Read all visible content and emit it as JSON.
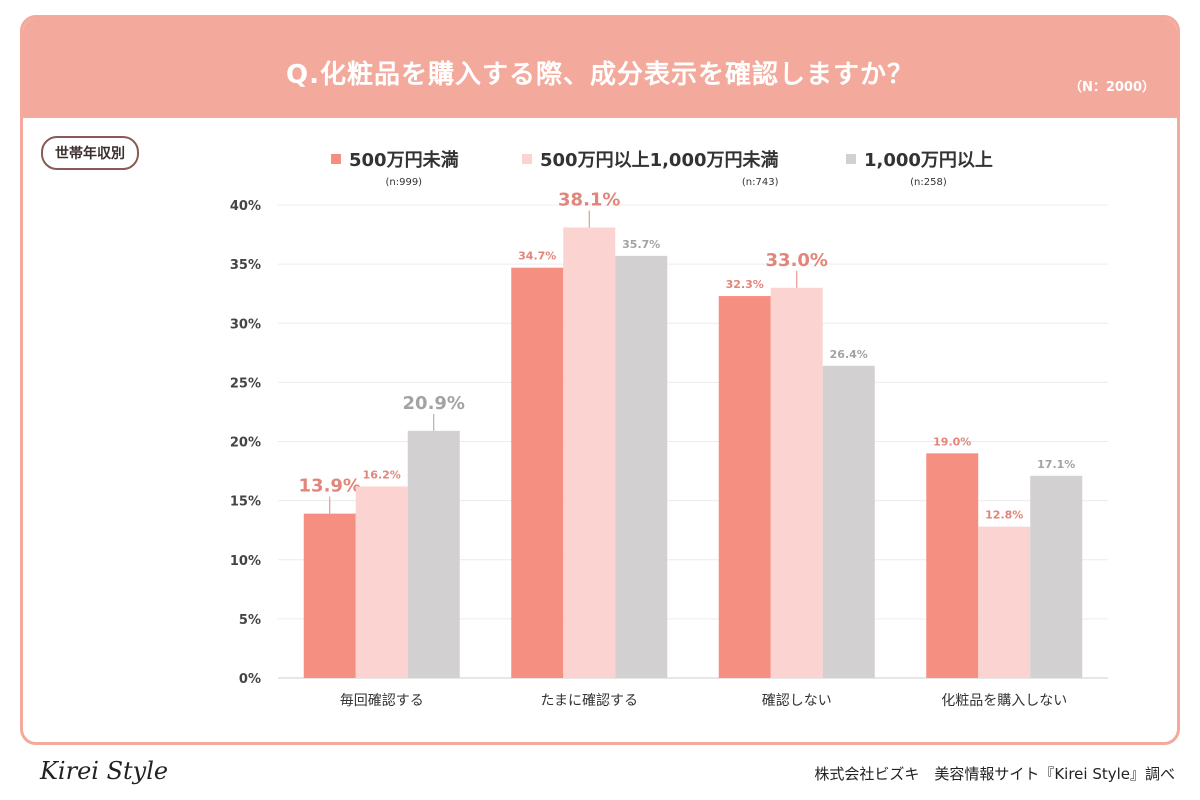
{
  "header": {
    "title": "Q.化粧品を購入する際、成分表示を確認しますか？",
    "sample_size": "（N：2000）"
  },
  "filter_pill": "世帯年収別",
  "legend": [
    {
      "label": "500万円未満",
      "n": "(n:999)"
    },
    {
      "label": "500万円以上1,000万円未満",
      "n": "(n:743)"
    },
    {
      "label": "1,000万円以上",
      "n": "(n:258)"
    }
  ],
  "chart_data": {
    "type": "bar",
    "categories": [
      "毎回確認する",
      "たまに確認する",
      "確認しない",
      "化粧品を購入しない"
    ],
    "series": [
      {
        "name": "500万円未満",
        "values": [
          13.9,
          34.7,
          32.3,
          19.0
        ],
        "color": "#f58f82"
      },
      {
        "name": "500万円以上1,000万円未満",
        "values": [
          16.2,
          38.1,
          33.0,
          12.8
        ],
        "color": "#fbd3d0"
      },
      {
        "name": "1,000万円以上",
        "values": [
          20.9,
          35.7,
          26.4,
          17.1
        ],
        "color": "#d2d0d1"
      }
    ],
    "data_labels": [
      [
        "13.9%",
        "34.7%",
        "32.3%",
        "19.0%"
      ],
      [
        "16.2%",
        "38.1%",
        "33.0%",
        "12.8%"
      ],
      [
        "20.9%",
        "35.7%",
        "26.4%",
        "17.1%"
      ]
    ],
    "highlight": [
      [
        1,
        0,
        0,
        0
      ],
      [
        0,
        1,
        1,
        0
      ],
      [
        1,
        0,
        0,
        0
      ]
    ],
    "ylim": [
      0,
      40
    ],
    "yticks": [
      0,
      5,
      10,
      15,
      20,
      25,
      30,
      35,
      40
    ],
    "ytick_labels": [
      "0%",
      "5%",
      "10%",
      "15%",
      "20%",
      "25%",
      "30%",
      "35%",
      "40%"
    ],
    "grid": true,
    "label_colors": {
      "normal": "#e2857a",
      "gray": "#a3a3a3"
    }
  },
  "footer": {
    "logo": "Kirei Style",
    "credit": "株式会社ビズキ　美容情報サイト『Kirei Style』調べ"
  }
}
